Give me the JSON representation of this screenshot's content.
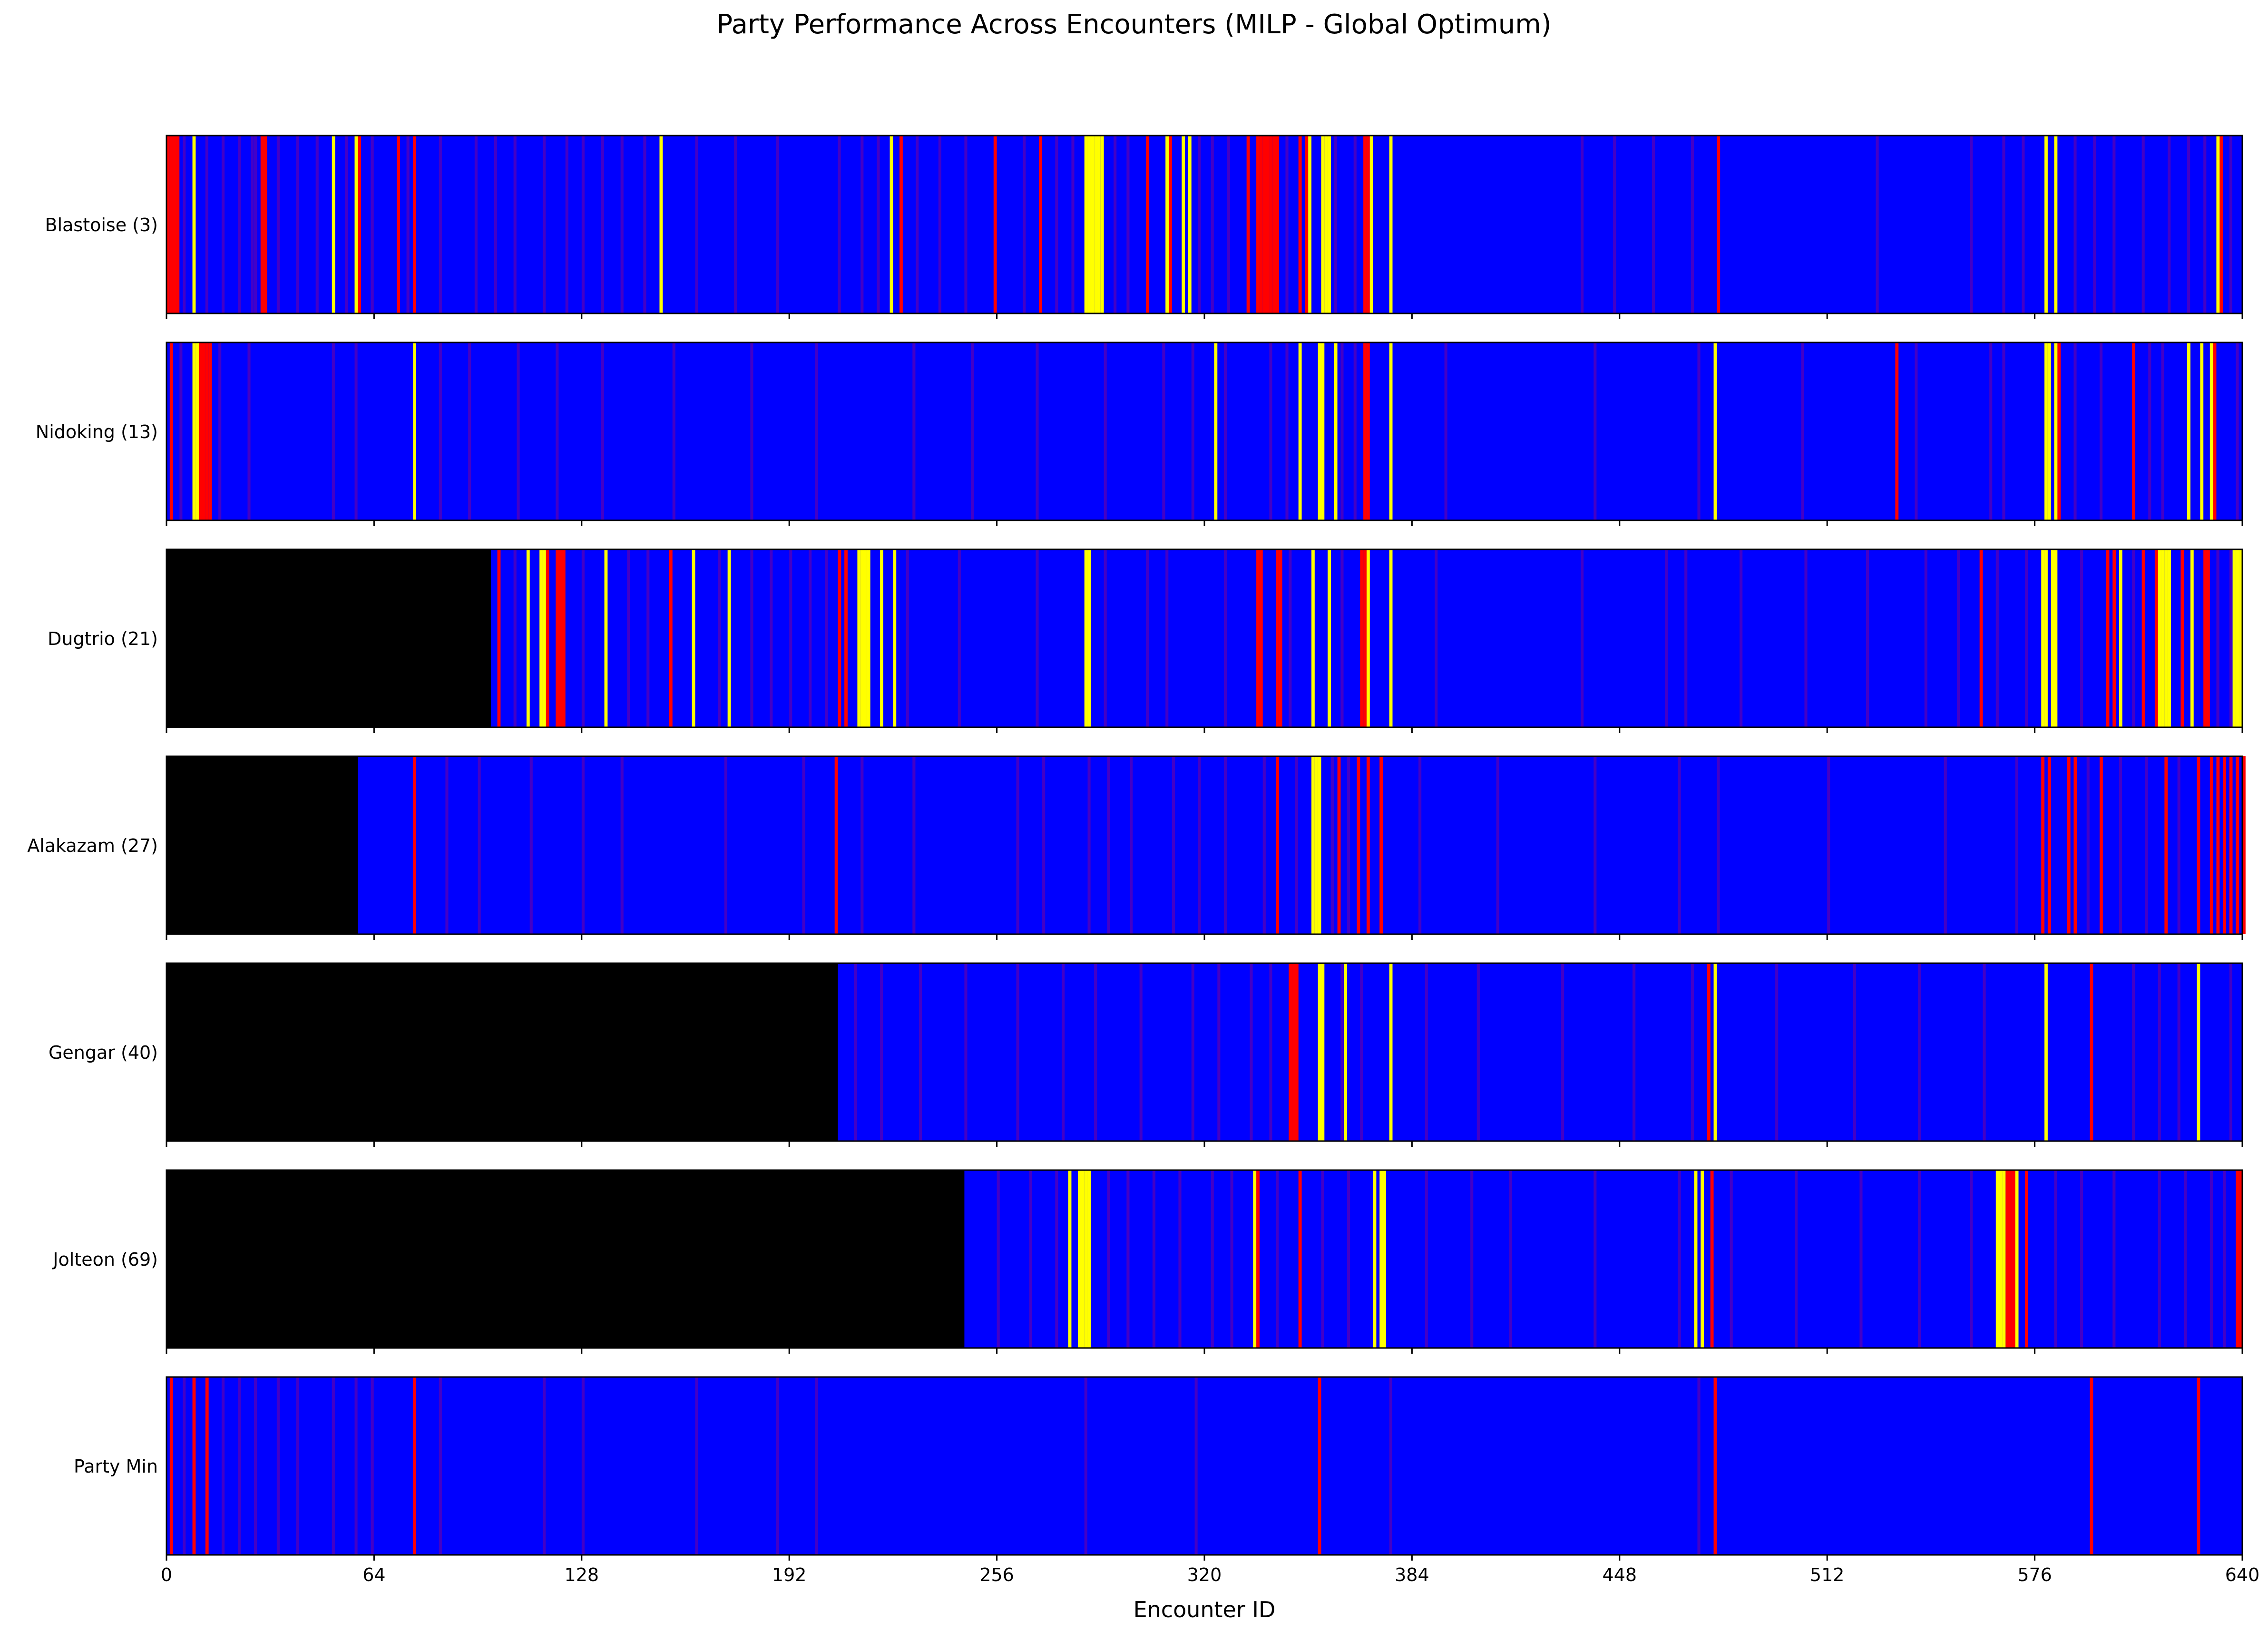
{
  "chart_data": {
    "type": "heatmap",
    "title": "Party Performance Across Encounters (MILP - Global Optimum)",
    "xlabel": "Encounter ID",
    "xlim": [
      0,
      640
    ],
    "xticks": [
      0,
      64,
      128,
      192,
      256,
      320,
      384,
      448,
      512,
      576,
      640
    ],
    "colormap": {
      "unavailable": "#000000",
      "low": "#0000ff",
      "mid": "#ff0000",
      "high": "#ffff00"
    },
    "rows": [
      {
        "label": "Blastoise (3)",
        "unavailable_until": 0,
        "yellow": [
          8,
          51,
          58,
          152,
          223,
          283,
          284,
          285,
          286,
          287,
          288,
          308,
          313,
          315,
          352,
          356,
          357,
          358,
          371,
          377,
          579,
          582,
          632
        ],
        "red": [
          0,
          1,
          2,
          3,
          29,
          30,
          59,
          71,
          76,
          226,
          255,
          269,
          302,
          309,
          333,
          336,
          337,
          338,
          339,
          340,
          341,
          342,
          349,
          351,
          369,
          370,
          478,
          632,
          633
        ],
        "faint": [
          5,
          12,
          17,
          22,
          26,
          27,
          34,
          40,
          46,
          55,
          63,
          74,
          84,
          95,
          101,
          107,
          116,
          123,
          128,
          134,
          140,
          147,
          163,
          175,
          188,
          207,
          214,
          219,
          231,
          238,
          246,
          264,
          274,
          279,
          292,
          296,
          318,
          322,
          327,
          345,
          360,
          366,
          436,
          446,
          458,
          470,
          527,
          556,
          566,
          572,
          588,
          594,
          600,
          609,
          617,
          623,
          628,
          636
        ]
      },
      {
        "label": "Nidoking (13)",
        "unavailable_until": 0,
        "yellow": [
          8,
          9,
          76,
          323,
          349,
          355,
          356,
          360,
          377,
          477,
          579,
          580,
          582,
          623,
          627,
          630
        ],
        "red": [
          1,
          10,
          11,
          12,
          13,
          369,
          370,
          533,
          583,
          606,
          631
        ],
        "faint": [
          4,
          16,
          25,
          51,
          58,
          84,
          93,
          108,
          120,
          134,
          156,
          180,
          200,
          230,
          248,
          268,
          289,
          307,
          316,
          326,
          340,
          345,
          362,
          366,
          394,
          440,
          472,
          504,
          539,
          562,
          566,
          588,
          596,
          611,
          615,
          638
        ]
      },
      {
        "label": "Dugtrio (21)",
        "unavailable_until": 100,
        "yellow": [
          111,
          115,
          116,
          135,
          162,
          173,
          213,
          214,
          215,
          216,
          220,
          224,
          283,
          284,
          353,
          358,
          370,
          377,
          578,
          579,
          581,
          582,
          602,
          614,
          615,
          616,
          617,
          624,
          637,
          638,
          639,
          640
        ],
        "red": [
          102,
          117,
          120,
          121,
          122,
          155,
          207,
          209,
          336,
          337,
          342,
          343,
          368,
          369,
          370,
          559,
          598,
          600,
          609,
          613,
          621,
          628,
          629
        ],
        "faint": [
          107,
          128,
          142,
          148,
          170,
          180,
          186,
          192,
          198,
          203,
          228,
          244,
          268,
          289,
          302,
          308,
          326,
          346,
          362,
          391,
          436,
          462,
          468,
          485,
          505,
          524,
          542,
          552,
          564,
          573,
          590,
          606,
          632,
          636
        ]
      },
      {
        "label": "Alakazam (27)",
        "unavailable_until": 59,
        "yellow": [
          353,
          354,
          355
        ],
        "red": [
          76,
          206,
          342,
          361,
          367,
          370,
          374,
          578,
          580,
          586,
          588,
          596,
          616,
          626,
          630,
          632,
          634,
          636,
          638,
          640
        ],
        "faint": [
          86,
          96,
          112,
          128,
          140,
          172,
          196,
          214,
          230,
          262,
          270,
          284,
          290,
          297,
          310,
          318,
          326,
          338,
          348,
          359,
          364,
          386,
          410,
          440,
          466,
          478,
          512,
          548,
          570,
          592,
          602,
          610,
          620
        ]
      },
      {
        "label": "Gengar (40)",
        "unavailable_until": 207,
        "yellow": [
          355,
          356,
          363,
          377,
          477,
          579,
          626
        ],
        "red": [
          346,
          347,
          348,
          475,
          593
        ],
        "faint": [
          212,
          220,
          232,
          246,
          262,
          276,
          286,
          300,
          316,
          324,
          334,
          340,
          362,
          368,
          388,
          404,
          430,
          452,
          470,
          496,
          520,
          540,
          560,
          606,
          614,
          620,
          636
        ]
      },
      {
        "label": "Jolteon (69)",
        "unavailable_until": 246,
        "yellow": [
          278,
          281,
          282,
          283,
          284,
          335,
          372,
          374,
          375,
          471,
          473,
          564,
          565,
          566,
          570
        ],
        "red": [
          336,
          349,
          476,
          567,
          568,
          569,
          573,
          638,
          639
        ],
        "faint": [
          256,
          266,
          274,
          290,
          296,
          304,
          312,
          322,
          328,
          342,
          356,
          364,
          388,
          402,
          414,
          440,
          466,
          482,
          502,
          522,
          540,
          556,
          582,
          590,
          600,
          614,
          622,
          630,
          634
        ]
      },
      {
        "label": "Party Min",
        "unavailable_until": 0,
        "yellow": [],
        "red": [
          1,
          8,
          12,
          76,
          355,
          477,
          593,
          626
        ],
        "faint": [
          5,
          17,
          22,
          27,
          34,
          40,
          51,
          58,
          63,
          84,
          116,
          128,
          163,
          188,
          200,
          283,
          317,
          377,
          472
        ]
      }
    ]
  }
}
